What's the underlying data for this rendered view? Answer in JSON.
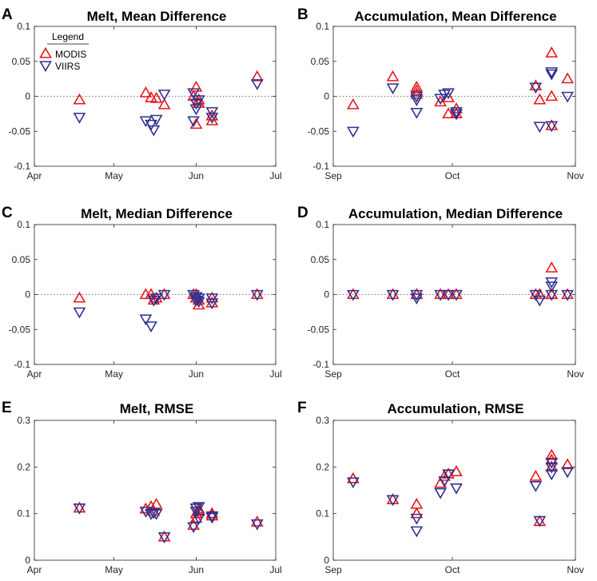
{
  "colors": {
    "modis": "#e8161c",
    "viirs": "#2e3192"
  },
  "legend": {
    "title": "Legend",
    "entries": [
      {
        "name": "MODIS",
        "key": "modis"
      },
      {
        "name": "VIIRS",
        "key": "viirs"
      }
    ]
  },
  "chart_data": [
    {
      "id": "A",
      "letter": "A",
      "title": "Melt, Mean Difference",
      "type": "scatter",
      "x_ticks": [
        {
          "day": 0,
          "label": "Apr"
        },
        {
          "day": 30,
          "label": "May"
        },
        {
          "day": 61,
          "label": "Jun"
        },
        {
          "day": 91,
          "label": "Jul"
        }
      ],
      "xlim": [
        0,
        91
      ],
      "ylim": [
        -0.1,
        0.1
      ],
      "y_ticks": [
        {
          "v": -0.1,
          "label": "-0.1"
        },
        {
          "v": -0.05,
          "label": "-0.05"
        },
        {
          "v": 0,
          "label": "0"
        },
        {
          "v": 0.05,
          "label": "0.05"
        },
        {
          "v": 0.1,
          "label": "0.1"
        }
      ],
      "zero_line": true,
      "legend": true,
      "series": [
        {
          "name": "MODIS",
          "key": "modis",
          "marker": "triangle-up",
          "points": [
            [
              17,
              -0.005
            ],
            [
              42,
              0.005
            ],
            [
              44,
              -0.002
            ],
            [
              46,
              -0.003
            ],
            [
              49,
              -0.012
            ],
            [
              60,
              0.0
            ],
            [
              61,
              0.013
            ],
            [
              61,
              -0.04
            ],
            [
              62,
              -0.01
            ],
            [
              62,
              -0.005
            ],
            [
              67,
              -0.028
            ],
            [
              67,
              -0.035
            ],
            [
              84,
              0.028
            ]
          ]
        },
        {
          "name": "VIIRS",
          "key": "viirs",
          "marker": "triangle-down",
          "points": [
            [
              17,
              -0.03
            ],
            [
              42,
              -0.035
            ],
            [
              44,
              -0.04
            ],
            [
              45,
              -0.048
            ],
            [
              46,
              -0.033
            ],
            [
              49,
              0.003
            ],
            [
              60,
              0.005
            ],
            [
              60,
              -0.035
            ],
            [
              61,
              -0.01
            ],
            [
              61,
              -0.018
            ],
            [
              62,
              -0.005
            ],
            [
              67,
              -0.022
            ],
            [
              67,
              -0.03
            ],
            [
              84,
              0.018
            ]
          ]
        }
      ]
    },
    {
      "id": "B",
      "letter": "B",
      "title": "Accumulation, Mean Difference",
      "type": "scatter",
      "x_ticks": [
        {
          "day": 0,
          "label": "Sep"
        },
        {
          "day": 30,
          "label": "Oct"
        },
        {
          "day": 61,
          "label": "Nov"
        }
      ],
      "xlim": [
        0,
        61
      ],
      "ylim": [
        -0.1,
        0.1
      ],
      "y_ticks": [
        {
          "v": -0.1,
          "label": "-0.1"
        },
        {
          "v": -0.05,
          "label": "-0.05"
        },
        {
          "v": 0,
          "label": "0"
        },
        {
          "v": 0.05,
          "label": "0.05"
        },
        {
          "v": 0.1,
          "label": "0.1"
        }
      ],
      "zero_line": true,
      "legend": false,
      "series": [
        {
          "name": "MODIS",
          "key": "modis",
          "marker": "triangle-up",
          "points": [
            [
              5,
              -0.012
            ],
            [
              15,
              0.028
            ],
            [
              21,
              0.013
            ],
            [
              21,
              0.008
            ],
            [
              21,
              0.003
            ],
            [
              27,
              -0.008
            ],
            [
              29,
              -0.002
            ],
            [
              29,
              -0.025
            ],
            [
              31,
              -0.018
            ],
            [
              31,
              -0.025
            ],
            [
              51,
              0.015
            ],
            [
              52,
              -0.005
            ],
            [
              55,
              0.062
            ],
            [
              55,
              0.0
            ],
            [
              55,
              -0.042
            ],
            [
              59,
              0.025
            ]
          ]
        },
        {
          "name": "VIIRS",
          "key": "viirs",
          "marker": "triangle-down",
          "points": [
            [
              5,
              -0.05
            ],
            [
              15,
              0.012
            ],
            [
              21,
              0.0
            ],
            [
              21,
              -0.005
            ],
            [
              21,
              -0.023
            ],
            [
              27,
              -0.003
            ],
            [
              28,
              0.003
            ],
            [
              29,
              0.005
            ],
            [
              31,
              -0.022
            ],
            [
              31,
              -0.025
            ],
            [
              51,
              0.013
            ],
            [
              52,
              -0.043
            ],
            [
              55,
              0.035
            ],
            [
              55,
              0.032
            ],
            [
              55,
              -0.042
            ],
            [
              59,
              0.0
            ]
          ]
        }
      ]
    },
    {
      "id": "C",
      "letter": "C",
      "title": "Melt, Median Difference",
      "type": "scatter",
      "x_ticks": [
        {
          "day": 0,
          "label": "Apr"
        },
        {
          "day": 30,
          "label": "May"
        },
        {
          "day": 61,
          "label": "Jun"
        },
        {
          "day": 91,
          "label": "Jul"
        }
      ],
      "xlim": [
        0,
        91
      ],
      "ylim": [
        -0.1,
        0.1
      ],
      "y_ticks": [
        {
          "v": -0.1,
          "label": "-0.1"
        },
        {
          "v": -0.05,
          "label": "-0.05"
        },
        {
          "v": 0,
          "label": "0"
        },
        {
          "v": 0.05,
          "label": "0.05"
        },
        {
          "v": 0.1,
          "label": "0.1"
        }
      ],
      "zero_line": true,
      "legend": false,
      "series": [
        {
          "name": "MODIS",
          "key": "modis",
          "marker": "triangle-up",
          "points": [
            [
              17,
              -0.005
            ],
            [
              42,
              0.0
            ],
            [
              44,
              0.0
            ],
            [
              45,
              -0.008
            ],
            [
              46,
              -0.005
            ],
            [
              49,
              0.0
            ],
            [
              60,
              0.0
            ],
            [
              61,
              0.0
            ],
            [
              61,
              -0.005
            ],
            [
              62,
              -0.015
            ],
            [
              62,
              -0.008
            ],
            [
              67,
              -0.005
            ],
            [
              67,
              -0.012
            ],
            [
              84,
              0.0
            ]
          ]
        },
        {
          "name": "VIIRS",
          "key": "viirs",
          "marker": "triangle-down",
          "points": [
            [
              17,
              -0.025
            ],
            [
              42,
              -0.035
            ],
            [
              44,
              -0.045
            ],
            [
              45,
              -0.008
            ],
            [
              46,
              -0.005
            ],
            [
              49,
              0.0
            ],
            [
              60,
              0.0
            ],
            [
              61,
              -0.003
            ],
            [
              61,
              -0.008
            ],
            [
              62,
              -0.01
            ],
            [
              62,
              -0.005
            ],
            [
              67,
              -0.012
            ],
            [
              67,
              -0.005
            ],
            [
              84,
              0.0
            ]
          ]
        }
      ]
    },
    {
      "id": "D",
      "letter": "D",
      "title": "Accumulation, Median Difference",
      "type": "scatter",
      "x_ticks": [
        {
          "day": 0,
          "label": "Sep"
        },
        {
          "day": 30,
          "label": "Oct"
        },
        {
          "day": 61,
          "label": "Nov"
        }
      ],
      "xlim": [
        0,
        61
      ],
      "ylim": [
        -0.1,
        0.1
      ],
      "y_ticks": [
        {
          "v": -0.1,
          "label": "-0.1"
        },
        {
          "v": -0.05,
          "label": "-0.05"
        },
        {
          "v": 0,
          "label": "0"
        },
        {
          "v": 0.05,
          "label": "0.05"
        },
        {
          "v": 0.1,
          "label": "0.1"
        }
      ],
      "zero_line": true,
      "legend": false,
      "series": [
        {
          "name": "MODIS",
          "key": "modis",
          "marker": "triangle-up",
          "points": [
            [
              5,
              0.0
            ],
            [
              15,
              0.0
            ],
            [
              21,
              0.0
            ],
            [
              21,
              0.0
            ],
            [
              27,
              0.0
            ],
            [
              29,
              0.0
            ],
            [
              31,
              0.0
            ],
            [
              51,
              0.0
            ],
            [
              52,
              0.0
            ],
            [
              55,
              0.038
            ],
            [
              55,
              0.0
            ],
            [
              55,
              0.0
            ],
            [
              59,
              0.0
            ]
          ]
        },
        {
          "name": "VIIRS",
          "key": "viirs",
          "marker": "triangle-down",
          "points": [
            [
              5,
              0.0
            ],
            [
              15,
              0.0
            ],
            [
              21,
              0.0
            ],
            [
              21,
              -0.005
            ],
            [
              27,
              0.0
            ],
            [
              29,
              0.0
            ],
            [
              31,
              0.0
            ],
            [
              51,
              0.0
            ],
            [
              52,
              -0.008
            ],
            [
              55,
              0.018
            ],
            [
              55,
              0.012
            ],
            [
              55,
              0.0
            ],
            [
              59,
              0.0
            ]
          ]
        }
      ]
    },
    {
      "id": "E",
      "letter": "E",
      "title": "Melt, RMSE",
      "type": "scatter",
      "x_ticks": [
        {
          "day": 0,
          "label": "Apr"
        },
        {
          "day": 30,
          "label": "May"
        },
        {
          "day": 61,
          "label": "Jun"
        },
        {
          "day": 91,
          "label": "Jul"
        }
      ],
      "xlim": [
        0,
        91
      ],
      "ylim": [
        0,
        0.3
      ],
      "y_ticks": [
        {
          "v": 0,
          "label": "0"
        },
        {
          "v": 0.1,
          "label": "0.1"
        },
        {
          "v": 0.2,
          "label": "0.2"
        },
        {
          "v": 0.3,
          "label": "0.3"
        }
      ],
      "zero_line": false,
      "legend": false,
      "series": [
        {
          "name": "MODIS",
          "key": "modis",
          "marker": "triangle-up",
          "points": [
            [
              17,
              0.112
            ],
            [
              42,
              0.11
            ],
            [
              44,
              0.115
            ],
            [
              45,
              0.105
            ],
            [
              46,
              0.12
            ],
            [
              49,
              0.05
            ],
            [
              60,
              0.075
            ],
            [
              61,
              0.1
            ],
            [
              61,
              0.09
            ],
            [
              62,
              0.11
            ],
            [
              62,
              0.105
            ],
            [
              67,
              0.1
            ],
            [
              67,
              0.095
            ],
            [
              84,
              0.082
            ]
          ]
        },
        {
          "name": "VIIRS",
          "key": "viirs",
          "marker": "triangle-down",
          "points": [
            [
              17,
              0.112
            ],
            [
              42,
              0.105
            ],
            [
              44,
              0.1
            ],
            [
              45,
              0.102
            ],
            [
              46,
              0.1
            ],
            [
              49,
              0.05
            ],
            [
              60,
              0.072
            ],
            [
              61,
              0.112
            ],
            [
              61,
              0.105
            ],
            [
              62,
              0.115
            ],
            [
              62,
              0.09
            ],
            [
              67,
              0.092
            ],
            [
              67,
              0.095
            ],
            [
              84,
              0.078
            ]
          ]
        }
      ]
    },
    {
      "id": "F",
      "letter": "F",
      "title": "Accumulation, RMSE",
      "type": "scatter",
      "x_ticks": [
        {
          "day": 0,
          "label": "Sep"
        },
        {
          "day": 30,
          "label": "Oct"
        },
        {
          "day": 61,
          "label": "Nov"
        }
      ],
      "xlim": [
        0,
        61
      ],
      "ylim": [
        0,
        0.3
      ],
      "y_ticks": [
        {
          "v": 0,
          "label": "0"
        },
        {
          "v": 0.1,
          "label": "0.1"
        },
        {
          "v": 0.2,
          "label": "0.2"
        },
        {
          "v": 0.3,
          "label": "0.3"
        }
      ],
      "zero_line": false,
      "legend": false,
      "series": [
        {
          "name": "MODIS",
          "key": "modis",
          "marker": "triangle-up",
          "points": [
            [
              5,
              0.175
            ],
            [
              15,
              0.13
            ],
            [
              21,
              0.12
            ],
            [
              21,
              0.1
            ],
            [
              27,
              0.165
            ],
            [
              28,
              0.18
            ],
            [
              29,
              0.185
            ],
            [
              31,
              0.19
            ],
            [
              51,
              0.18
            ],
            [
              52,
              0.083
            ],
            [
              55,
              0.225
            ],
            [
              55,
              0.215
            ],
            [
              55,
              0.2
            ],
            [
              59,
              0.205
            ]
          ]
        },
        {
          "name": "VIIRS",
          "key": "viirs",
          "marker": "triangle-down",
          "points": [
            [
              5,
              0.168
            ],
            [
              15,
              0.13
            ],
            [
              21,
              0.09
            ],
            [
              21,
              0.063
            ],
            [
              27,
              0.145
            ],
            [
              28,
              0.17
            ],
            [
              29,
              0.185
            ],
            [
              31,
              0.155
            ],
            [
              51,
              0.16
            ],
            [
              52,
              0.085
            ],
            [
              55,
              0.21
            ],
            [
              55,
              0.2
            ],
            [
              55,
              0.185
            ],
            [
              59,
              0.19
            ]
          ]
        }
      ]
    }
  ]
}
